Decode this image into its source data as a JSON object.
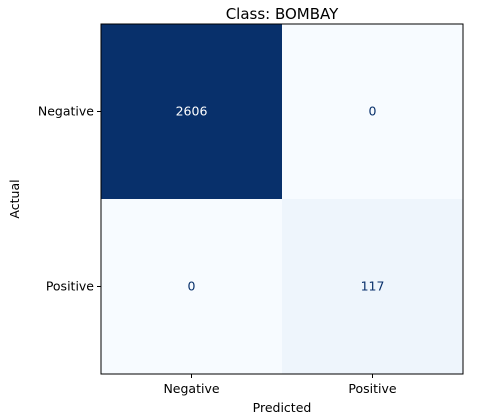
{
  "chart_data": {
    "type": "heatmap",
    "title": "Class: BOMBAY",
    "xlabel": "Predicted",
    "ylabel": "Actual",
    "x_categories": [
      "Negative",
      "Positive"
    ],
    "y_categories": [
      "Negative",
      "Positive"
    ],
    "matrix": [
      [
        2606,
        0
      ],
      [
        0,
        117
      ]
    ],
    "colormap": "Blues",
    "color_low": "#f7fbff",
    "color_high": "#08306b",
    "text_dark": "#08306b",
    "text_light": "#ffffff",
    "grid": false
  }
}
